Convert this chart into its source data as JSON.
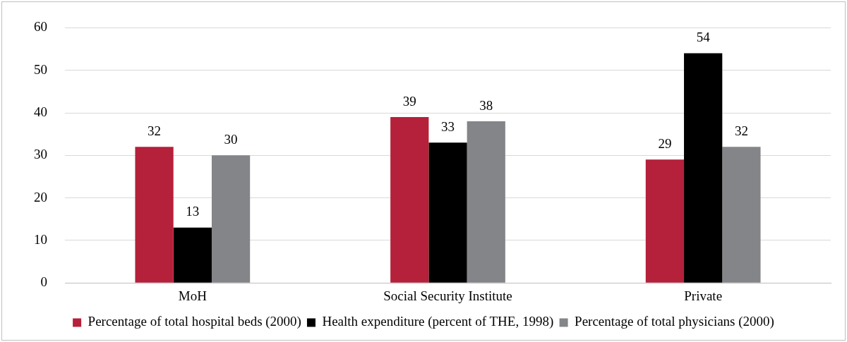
{
  "chart_data": {
    "type": "bar",
    "categories": [
      "MoH",
      "Social Security Institute",
      "Private"
    ],
    "series": [
      {
        "name": "Percentage of total hospital beds (2000)",
        "color": "#b5203a",
        "values": [
          32,
          39,
          29
        ]
      },
      {
        "name": "Health expenditure (percent of THE, 1998)",
        "color": "#000000",
        "values": [
          13,
          33,
          54
        ]
      },
      {
        "name": "Percentage of total physicians (2000)",
        "color": "#848589",
        "values": [
          30,
          38,
          32
        ]
      }
    ],
    "ylim": [
      0,
      60
    ],
    "yticks": [
      0,
      10,
      20,
      30,
      40,
      50,
      60
    ],
    "grid": "y",
    "legend": "bottom",
    "data_labels": true
  }
}
